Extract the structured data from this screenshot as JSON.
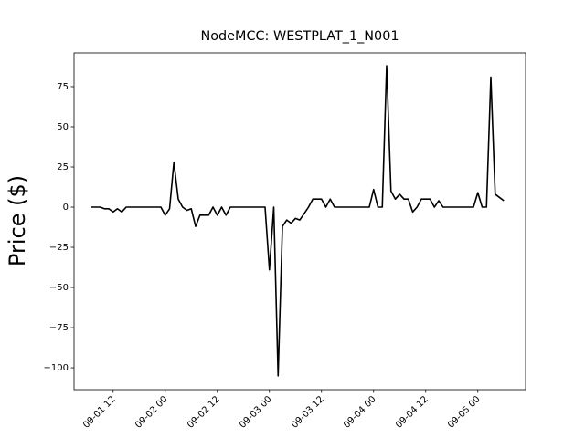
{
  "chart_data": {
    "type": "line",
    "title": "NodeMCC: WESTPLAT_1_N001",
    "y_label": "Price ($)",
    "x": [
      "09-01 07",
      "09-01 08",
      "09-01 09",
      "09-01 10",
      "09-01 11",
      "09-01 12",
      "09-01 13",
      "09-01 14",
      "09-01 15",
      "09-01 16",
      "09-01 17",
      "09-01 18",
      "09-01 19",
      "09-01 20",
      "09-01 21",
      "09-01 22",
      "09-01 23",
      "09-02 00",
      "09-02 01",
      "09-02 02",
      "09-02 03",
      "09-02 04",
      "09-02 05",
      "09-02 06",
      "09-02 07",
      "09-02 08",
      "09-02 09",
      "09-02 10",
      "09-02 11",
      "09-02 12",
      "09-02 13",
      "09-02 14",
      "09-02 15",
      "09-02 16",
      "09-02 17",
      "09-02 18",
      "09-02 19",
      "09-02 20",
      "09-02 21",
      "09-02 22",
      "09-02 23",
      "09-03 00",
      "09-03 01",
      "09-03 02",
      "09-03 03",
      "09-03 04",
      "09-03 05",
      "09-03 06",
      "09-03 07",
      "09-03 08",
      "09-03 09",
      "09-03 10",
      "09-03 11",
      "09-03 12",
      "09-03 13",
      "09-03 14",
      "09-03 15",
      "09-03 16",
      "09-03 17",
      "09-03 18",
      "09-03 19",
      "09-03 20",
      "09-03 21",
      "09-03 22",
      "09-03 23",
      "09-04 00",
      "09-04 01",
      "09-04 02",
      "09-04 03",
      "09-04 04",
      "09-04 05",
      "09-04 06",
      "09-04 07",
      "09-04 08",
      "09-04 09",
      "09-04 10",
      "09-04 11",
      "09-04 12",
      "09-04 13",
      "09-04 14",
      "09-04 15",
      "09-04 16",
      "09-04 17",
      "09-04 18",
      "09-04 19",
      "09-04 20",
      "09-04 21",
      "09-04 22",
      "09-04 23",
      "09-05 00",
      "09-05 01",
      "09-05 02",
      "09-05 03",
      "09-05 04",
      "09-05 05",
      "09-05 06"
    ],
    "series": [
      {
        "name": "Price",
        "color": "#000000",
        "values": [
          0,
          0,
          0,
          -1,
          -1,
          -3,
          -1,
          -3,
          0,
          0,
          0,
          0,
          0,
          0,
          0,
          0,
          0,
          -5,
          -1,
          28,
          5,
          0,
          -2,
          -1,
          -12,
          -5,
          -5,
          -5,
          0,
          -5,
          0,
          -5,
          0,
          0,
          0,
          0,
          0,
          0,
          0,
          0,
          0,
          -39,
          0,
          -105,
          -12,
          -8,
          -10,
          -7,
          -8,
          -4,
          0,
          5,
          5,
          5,
          0,
          5,
          0,
          0,
          0,
          0,
          0,
          0,
          0,
          0,
          0,
          11,
          0,
          0,
          88,
          10,
          5,
          8,
          5,
          5,
          -3,
          0,
          5,
          5,
          5,
          0,
          4,
          0,
          0,
          0,
          0,
          0,
          0,
          0,
          0,
          9,
          0,
          0,
          81,
          8,
          6,
          4
        ]
      }
    ],
    "xlim": [
      "09-01 03",
      "09-05 11"
    ],
    "xticks": [
      "09-01 12",
      "09-02 00",
      "09-02 12",
      "09-03 00",
      "09-03 12",
      "09-04 00",
      "09-04 12",
      "09-05 00"
    ],
    "ylim": [
      -113.6,
      96
    ],
    "yticks": [
      {
        "value": -100,
        "label": "−100"
      },
      {
        "value": -75,
        "label": "−75"
      },
      {
        "value": -50,
        "label": "−50"
      },
      {
        "value": -25,
        "label": "−25"
      },
      0,
      25,
      50,
      75
    ]
  }
}
